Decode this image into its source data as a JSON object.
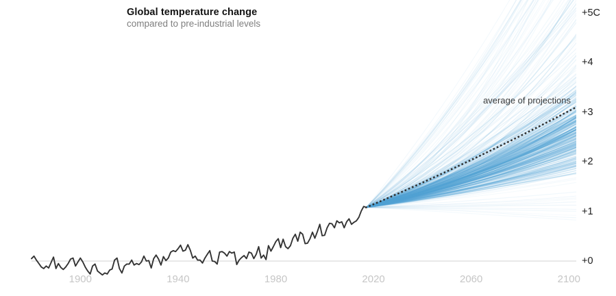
{
  "header": {
    "title": "Global temperature change",
    "subtitle": "compared to pre-industrial levels"
  },
  "annotation": {
    "average_label": "average of projections"
  },
  "chart_data": {
    "type": "line",
    "projection_fan": true,
    "title": "Global temperature change",
    "subtitle": "compared to pre-industrial levels",
    "x_axis": {
      "range_years": [
        1880,
        2106
      ],
      "ticks": [
        {
          "year": 1900,
          "label": "1900"
        },
        {
          "year": 1940,
          "label": "1940"
        },
        {
          "year": 1980,
          "label": "1980"
        },
        {
          "year": 2020,
          "label": "2020"
        },
        {
          "year": 2060,
          "label": "2060"
        },
        {
          "year": 2100,
          "label": "2100"
        }
      ]
    },
    "y_axis": {
      "unit": "C",
      "range": [
        -0.45,
        5.2
      ],
      "zero_gridline": true,
      "ticks": [
        {
          "value": 0,
          "label": "+0"
        },
        {
          "value": 1,
          "label": "+1"
        },
        {
          "value": 2,
          "label": "+2"
        },
        {
          "value": 3,
          "label": "+3"
        },
        {
          "value": 4,
          "label": "+4"
        },
        {
          "value": 5,
          "label": "+5C"
        }
      ]
    },
    "historical": {
      "name": "observed-temperature-anomaly",
      "start_year": 1880,
      "end_year": 2017,
      "values": [
        0.05,
        0.1,
        0.02,
        -0.05,
        -0.12,
        -0.15,
        -0.1,
        -0.14,
        -0.03,
        0.08,
        -0.15,
        -0.05,
        -0.13,
        -0.17,
        -0.12,
        -0.05,
        0.04,
        0.06,
        -0.1,
        -0.02,
        0.06,
        -0.02,
        -0.12,
        -0.2,
        -0.26,
        -0.1,
        -0.06,
        -0.2,
        -0.24,
        -0.28,
        -0.24,
        -0.26,
        -0.18,
        -0.16,
        0.02,
        0.06,
        -0.15,
        -0.24,
        -0.1,
        -0.06,
        -0.06,
        0.02,
        -0.08,
        -0.05,
        -0.07,
        -0.02,
        0.1,
        0.0,
        0.01,
        -0.14,
        0.05,
        0.12,
        0.04,
        -0.08,
        0.09,
        0.01,
        0.06,
        0.18,
        0.21,
        0.19,
        0.25,
        0.32,
        0.2,
        0.22,
        0.33,
        0.22,
        0.06,
        0.1,
        0.02,
        0.02,
        -0.04,
        0.06,
        0.14,
        0.21,
        0.0,
        -0.01,
        -0.06,
        0.18,
        0.19,
        0.16,
        0.1,
        0.19,
        0.16,
        0.18,
        -0.07,
        0.02,
        0.07,
        0.11,
        0.05,
        0.18,
        0.16,
        0.05,
        0.14,
        0.29,
        0.06,
        0.12,
        0.03,
        0.31,
        0.2,
        0.29,
        0.39,
        0.45,
        0.27,
        0.44,
        0.29,
        0.25,
        0.31,
        0.46,
        0.54,
        0.4,
        0.58,
        0.54,
        0.35,
        0.36,
        0.45,
        0.58,
        0.46,
        0.59,
        0.74,
        0.51,
        0.52,
        0.67,
        0.76,
        0.75,
        0.67,
        0.81,
        0.77,
        0.79,
        0.67,
        0.79,
        0.85,
        0.74,
        0.78,
        0.81,
        0.88,
        1.01,
        1.1,
        1.08
      ]
    },
    "projections": {
      "name": "climate-model-projections",
      "start_year": 2017,
      "start_value": 1.08,
      "end_year": 2106,
      "strand_count": 360,
      "end_value_range": [
        0.72,
        8.2
      ],
      "dense_band_end_values": [
        1.7,
        3.7
      ]
    },
    "average_line": {
      "label": "average of projections",
      "start": {
        "year": 2017,
        "value": 1.08
      },
      "end": {
        "year": 2105,
        "value": 3.15
      }
    },
    "colors": {
      "historical": "#333333",
      "projection": "#54a4d6",
      "average_dotted": "#2e2e2e",
      "zero_line": "#d2d2d2",
      "year_tick": "#c6c6c6",
      "temp_tick": "#1c1c1c",
      "title": "#121212",
      "subtitle": "#7f7f7f"
    }
  }
}
